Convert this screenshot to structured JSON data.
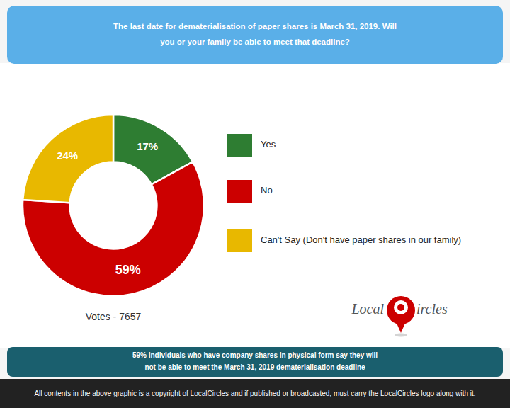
{
  "chart_data": {
    "type": "donut",
    "title": "The last date for dematerialisation of paper shares is March 31, 2019. Will\nyou or your family be able to meet that deadline?",
    "categories": [
      "Yes",
      "No",
      "Can't Say (Don't have paper shares in our family)"
    ],
    "values": [
      17,
      59,
      24
    ],
    "value_labels": [
      "17%",
      "59%",
      "24%"
    ],
    "colors": [
      "#2e7d32",
      "#cc0000",
      "#e8b800"
    ],
    "data_labels": true,
    "annotations": [
      "Votes - 7657",
      "59% individuals who have company shares in physical form say they will\nnot be able to meet the March 31, 2019 dematerialisation deadline",
      "All contents in the above graphic is a copyright of LocalCircles and if published or broadcasted, must carry the LocalCircles logo along with it.",
      "Local",
      "ircles"
    ]
  }
}
